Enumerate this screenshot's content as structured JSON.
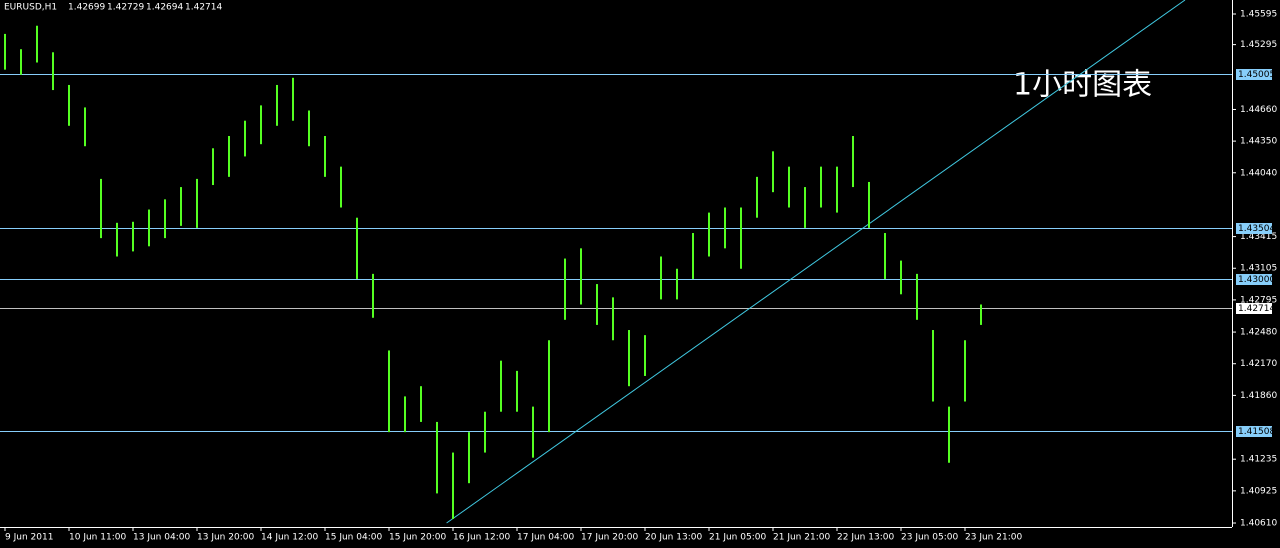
{
  "chart_data": {
    "type": "hilo",
    "symbol": "EURUSD,H1",
    "quote": [
      1.42699,
      1.42729,
      1.42694,
      1.42714
    ],
    "annotation": "1小时图表",
    "categories": [
      "9 Jun 2011",
      null,
      null,
      null,
      "10 Jun 11:00",
      null,
      null,
      null,
      "13 Jun 04:00",
      null,
      null,
      null,
      "13 Jun 20:00",
      null,
      null,
      null,
      "14 Jun 12:00",
      null,
      null,
      null,
      "15 Jun 04:00",
      null,
      null,
      null,
      "15 Jun 20:00",
      null,
      null,
      null,
      "16 Jun 12:00",
      null,
      null,
      null,
      "17 Jun 04:00",
      null,
      null,
      null,
      "17 Jun 20:00",
      null,
      null,
      null,
      "20 Jun 13:00",
      null,
      null,
      null,
      "21 Jun 05:00",
      null,
      null,
      null,
      "21 Jun 21:00",
      null,
      null,
      null,
      "22 Jun 13:00",
      null,
      null,
      null,
      "23 Jun 05:00",
      null,
      null,
      null,
      "23 Jun 21:00",
      null
    ],
    "series": [
      {
        "name": "High",
        "color": "#55ff22",
        "values": [
          1.454,
          1.4525,
          1.4548,
          1.4522,
          1.449,
          1.4468,
          1.4398,
          1.4355,
          1.4356,
          1.4368,
          1.4378,
          1.439,
          1.4398,
          1.4428,
          1.444,
          1.4455,
          1.447,
          1.449,
          1.4497,
          1.4465,
          1.444,
          1.441,
          1.436,
          1.4305,
          1.423,
          1.4185,
          1.4195,
          1.416,
          1.413,
          1.415,
          1.417,
          1.422,
          1.421,
          1.4175,
          1.424,
          1.432,
          1.433,
          1.4295,
          1.4282,
          1.425,
          1.4245,
          1.4322,
          1.431,
          1.4345,
          1.4365,
          1.437,
          1.437,
          1.44,
          1.4425,
          1.441,
          1.439,
          1.441,
          1.441,
          1.444,
          1.4395,
          1.4345,
          1.4318,
          1.4305,
          1.425,
          1.4175,
          1.424,
          1.4275
        ]
      },
      {
        "name": "Low",
        "color": "#55ff22",
        "values": [
          1.4505,
          1.45,
          1.4512,
          1.4485,
          1.445,
          1.443,
          1.434,
          1.4322,
          1.4327,
          1.4332,
          1.434,
          1.4352,
          1.435,
          1.4392,
          1.44,
          1.442,
          1.4432,
          1.445,
          1.4455,
          1.443,
          1.44,
          1.437,
          1.43,
          1.4262,
          1.415,
          1.415,
          1.416,
          1.409,
          1.4065,
          1.41,
          1.413,
          1.417,
          1.417,
          1.4125,
          1.415,
          1.426,
          1.4275,
          1.4255,
          1.424,
          1.4195,
          1.4205,
          1.428,
          1.428,
          1.43,
          1.4322,
          1.433,
          1.431,
          1.436,
          1.4385,
          1.437,
          1.435,
          1.437,
          1.4365,
          1.439,
          1.435,
          1.43,
          1.4285,
          1.426,
          1.418,
          1.412,
          1.418,
          1.4255
        ]
      }
    ],
    "ylim": [
      1.40571,
      1.45732
    ],
    "yticks": [
      1.45595,
      1.45295,
      {
        "value": 1.4466,
        "label": "1.44660"
      },
      {
        "value": 1.4435,
        "label": "1.44350"
      },
      {
        "value": 1.4404,
        "label": "1.44040"
      },
      1.43415,
      1.43105,
      1.42795,
      {
        "value": 1.4248,
        "label": "1.42480"
      },
      {
        "value": 1.4217,
        "label": "1.42170"
      },
      {
        "value": 1.4186,
        "label": "1.41860"
      },
      1.41235,
      1.40925,
      {
        "value": 1.4061,
        "label": "1.40610"
      }
    ],
    "levels": [
      {
        "value": 1.45005,
        "color": "#87cefa"
      },
      {
        "value": 1.43504,
        "color": "#87cefa"
      },
      {
        "value": {
          "value": 1.43,
          "label": "1.43000"
        },
        "color": "#87cefa"
      },
      {
        "value": 1.41508,
        "color": "#87cefa"
      },
      {
        "value": 1.42714,
        "color": "#c0c0c0"
      }
    ],
    "trendline": {
      "color": "#40c8e0",
      "x": [
        27.6,
        73.75
      ],
      "y": [
        1.4061,
        1.45732
      ]
    },
    "grid": false
  }
}
